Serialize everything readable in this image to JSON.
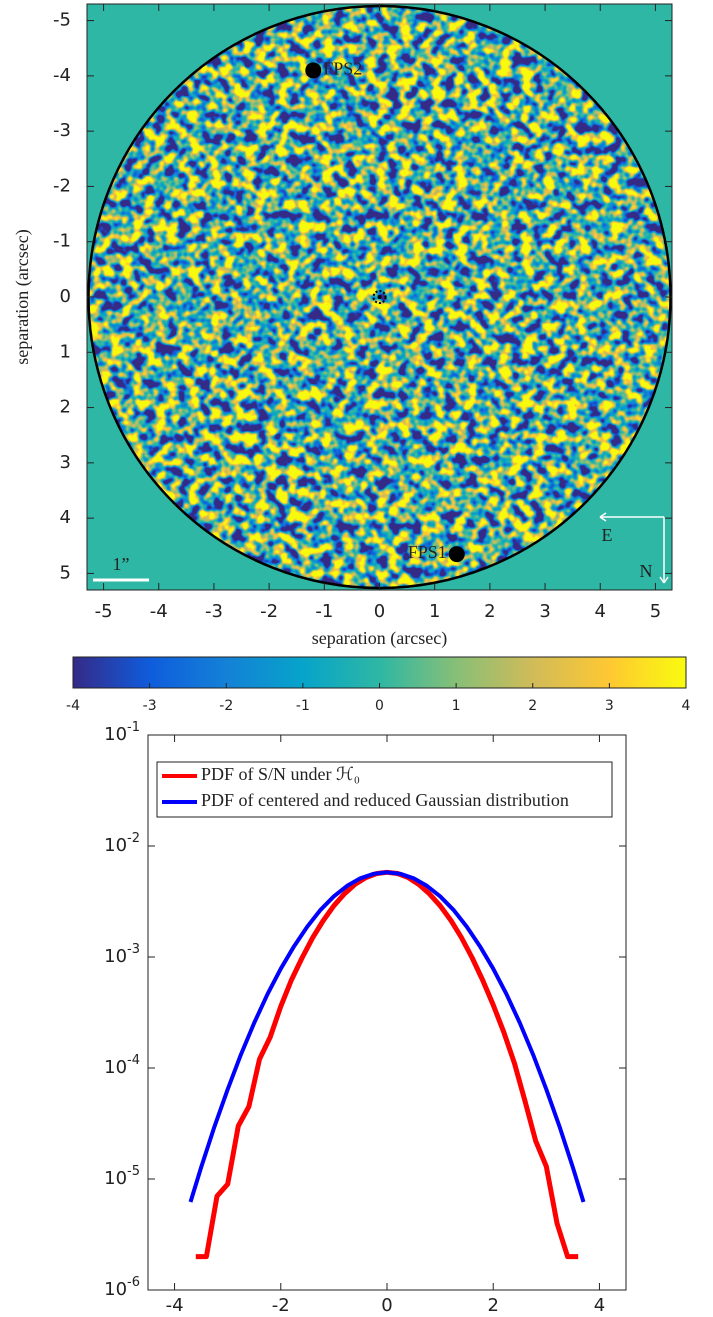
{
  "chart_data": [
    {
      "type": "image",
      "xlabel": "separation (arcsec)",
      "ylabel": "separation (arcsec)",
      "xlim": [
        -5.3,
        5.3
      ],
      "ylim": [
        5.3,
        -5.3
      ],
      "xticks": [
        -5,
        -4,
        -3,
        -2,
        -1,
        0,
        1,
        2,
        3,
        4,
        5
      ],
      "yticks": [
        -5,
        -4,
        -3,
        -2,
        -1,
        0,
        1,
        2,
        3,
        4,
        5
      ],
      "colormap": [
        "#352a87",
        "#0f5cdd",
        "#1481d6",
        "#06a4ca",
        "#2eb7a4",
        "#87bf77",
        "#d1bb59",
        "#fec832",
        "#f9fb0e"
      ],
      "clim": [
        -4,
        4
      ],
      "cticks": [
        -4,
        -3,
        -2,
        -1,
        0,
        1,
        2,
        3,
        4
      ],
      "annotations": [
        {
          "text": "FPS2",
          "x": -1.2,
          "y": -4.1
        },
        {
          "text": "FPS1",
          "x": 1.4,
          "y": 4.65
        }
      ],
      "scale_bar": "1”",
      "compass": [
        "E",
        "N"
      ]
    },
    {
      "type": "line",
      "log_y": true,
      "xlim": [
        -4.5,
        4.5
      ],
      "xticks": [
        -4,
        -2,
        0,
        2,
        4
      ],
      "ylim": [
        1e-06,
        0.1
      ],
      "yticks": [
        {
          "value": 0.1,
          "label": "10^-1"
        },
        {
          "value": 0.01,
          "label": "10^-2"
        },
        {
          "value": 0.001,
          "label": "10^-3"
        },
        {
          "value": 0.0001,
          "label": "10^-4"
        },
        {
          "value": 1e-05,
          "label": "10^-5"
        },
        {
          "value": 1e-06,
          "label": "10^-6"
        }
      ],
      "legend": "upper-left",
      "series": [
        {
          "name": "PDF of S/N under ℋ₀",
          "color": "#ff0000",
          "x": [
            -3.6,
            -3.4,
            -3.2,
            -3.0,
            -2.8,
            -2.6,
            -2.4,
            -2.2,
            -2.0,
            -1.8,
            -1.6,
            -1.4,
            -1.2,
            -1.0,
            -0.8,
            -0.6,
            -0.4,
            -0.2,
            0,
            0.2,
            0.4,
            0.6,
            0.8,
            1.0,
            1.2,
            1.4,
            1.6,
            1.8,
            2.0,
            2.2,
            2.4,
            2.6,
            2.8,
            3.0,
            3.2,
            3.4,
            3.6
          ],
          "values": [
            2e-06,
            2e-06,
            7e-06,
            9e-06,
            3e-05,
            4.5e-05,
            0.00012,
            0.00019,
            0.00036,
            0.00062,
            0.00098,
            0.00149,
            0.00213,
            0.0029,
            0.00372,
            0.00452,
            0.00519,
            0.00564,
            0.0058,
            0.00565,
            0.0052,
            0.0045,
            0.0037,
            0.0029,
            0.00215,
            0.0015,
            0.00099,
            0.00062,
            0.00037,
            0.00021,
            0.00011,
            5e-05,
            2.2e-05,
            1.3e-05,
            4e-06,
            2e-06,
            2e-06
          ]
        },
        {
          "name": "PDF of centered and reduced Gaussian distribution",
          "color": "#0000ff",
          "x": [
            -3.7,
            -3.5,
            -3.25,
            -3,
            -2.75,
            -2.5,
            -2.25,
            -2,
            -1.75,
            -1.5,
            -1.25,
            -1,
            -0.75,
            -0.5,
            -0.25,
            0,
            0.25,
            0.5,
            0.75,
            1,
            1.25,
            1.5,
            1.75,
            2,
            2.25,
            2.5,
            2.75,
            3,
            3.25,
            3.5,
            3.7
          ],
          "values": [
            6.2e-06,
            1.27e-05,
            2.95e-05,
            6.43e-05,
            0.000132,
            0.000255,
            0.000462,
            0.000785,
            0.00125,
            0.00188,
            0.00266,
            0.00352,
            0.00438,
            0.00512,
            0.00562,
            0.0058,
            0.00562,
            0.00512,
            0.00438,
            0.00352,
            0.00266,
            0.00188,
            0.00125,
            0.000785,
            0.000462,
            0.000255,
            0.000132,
            6.43e-05,
            2.95e-05,
            1.27e-05,
            6.2e-06
          ]
        }
      ]
    }
  ]
}
